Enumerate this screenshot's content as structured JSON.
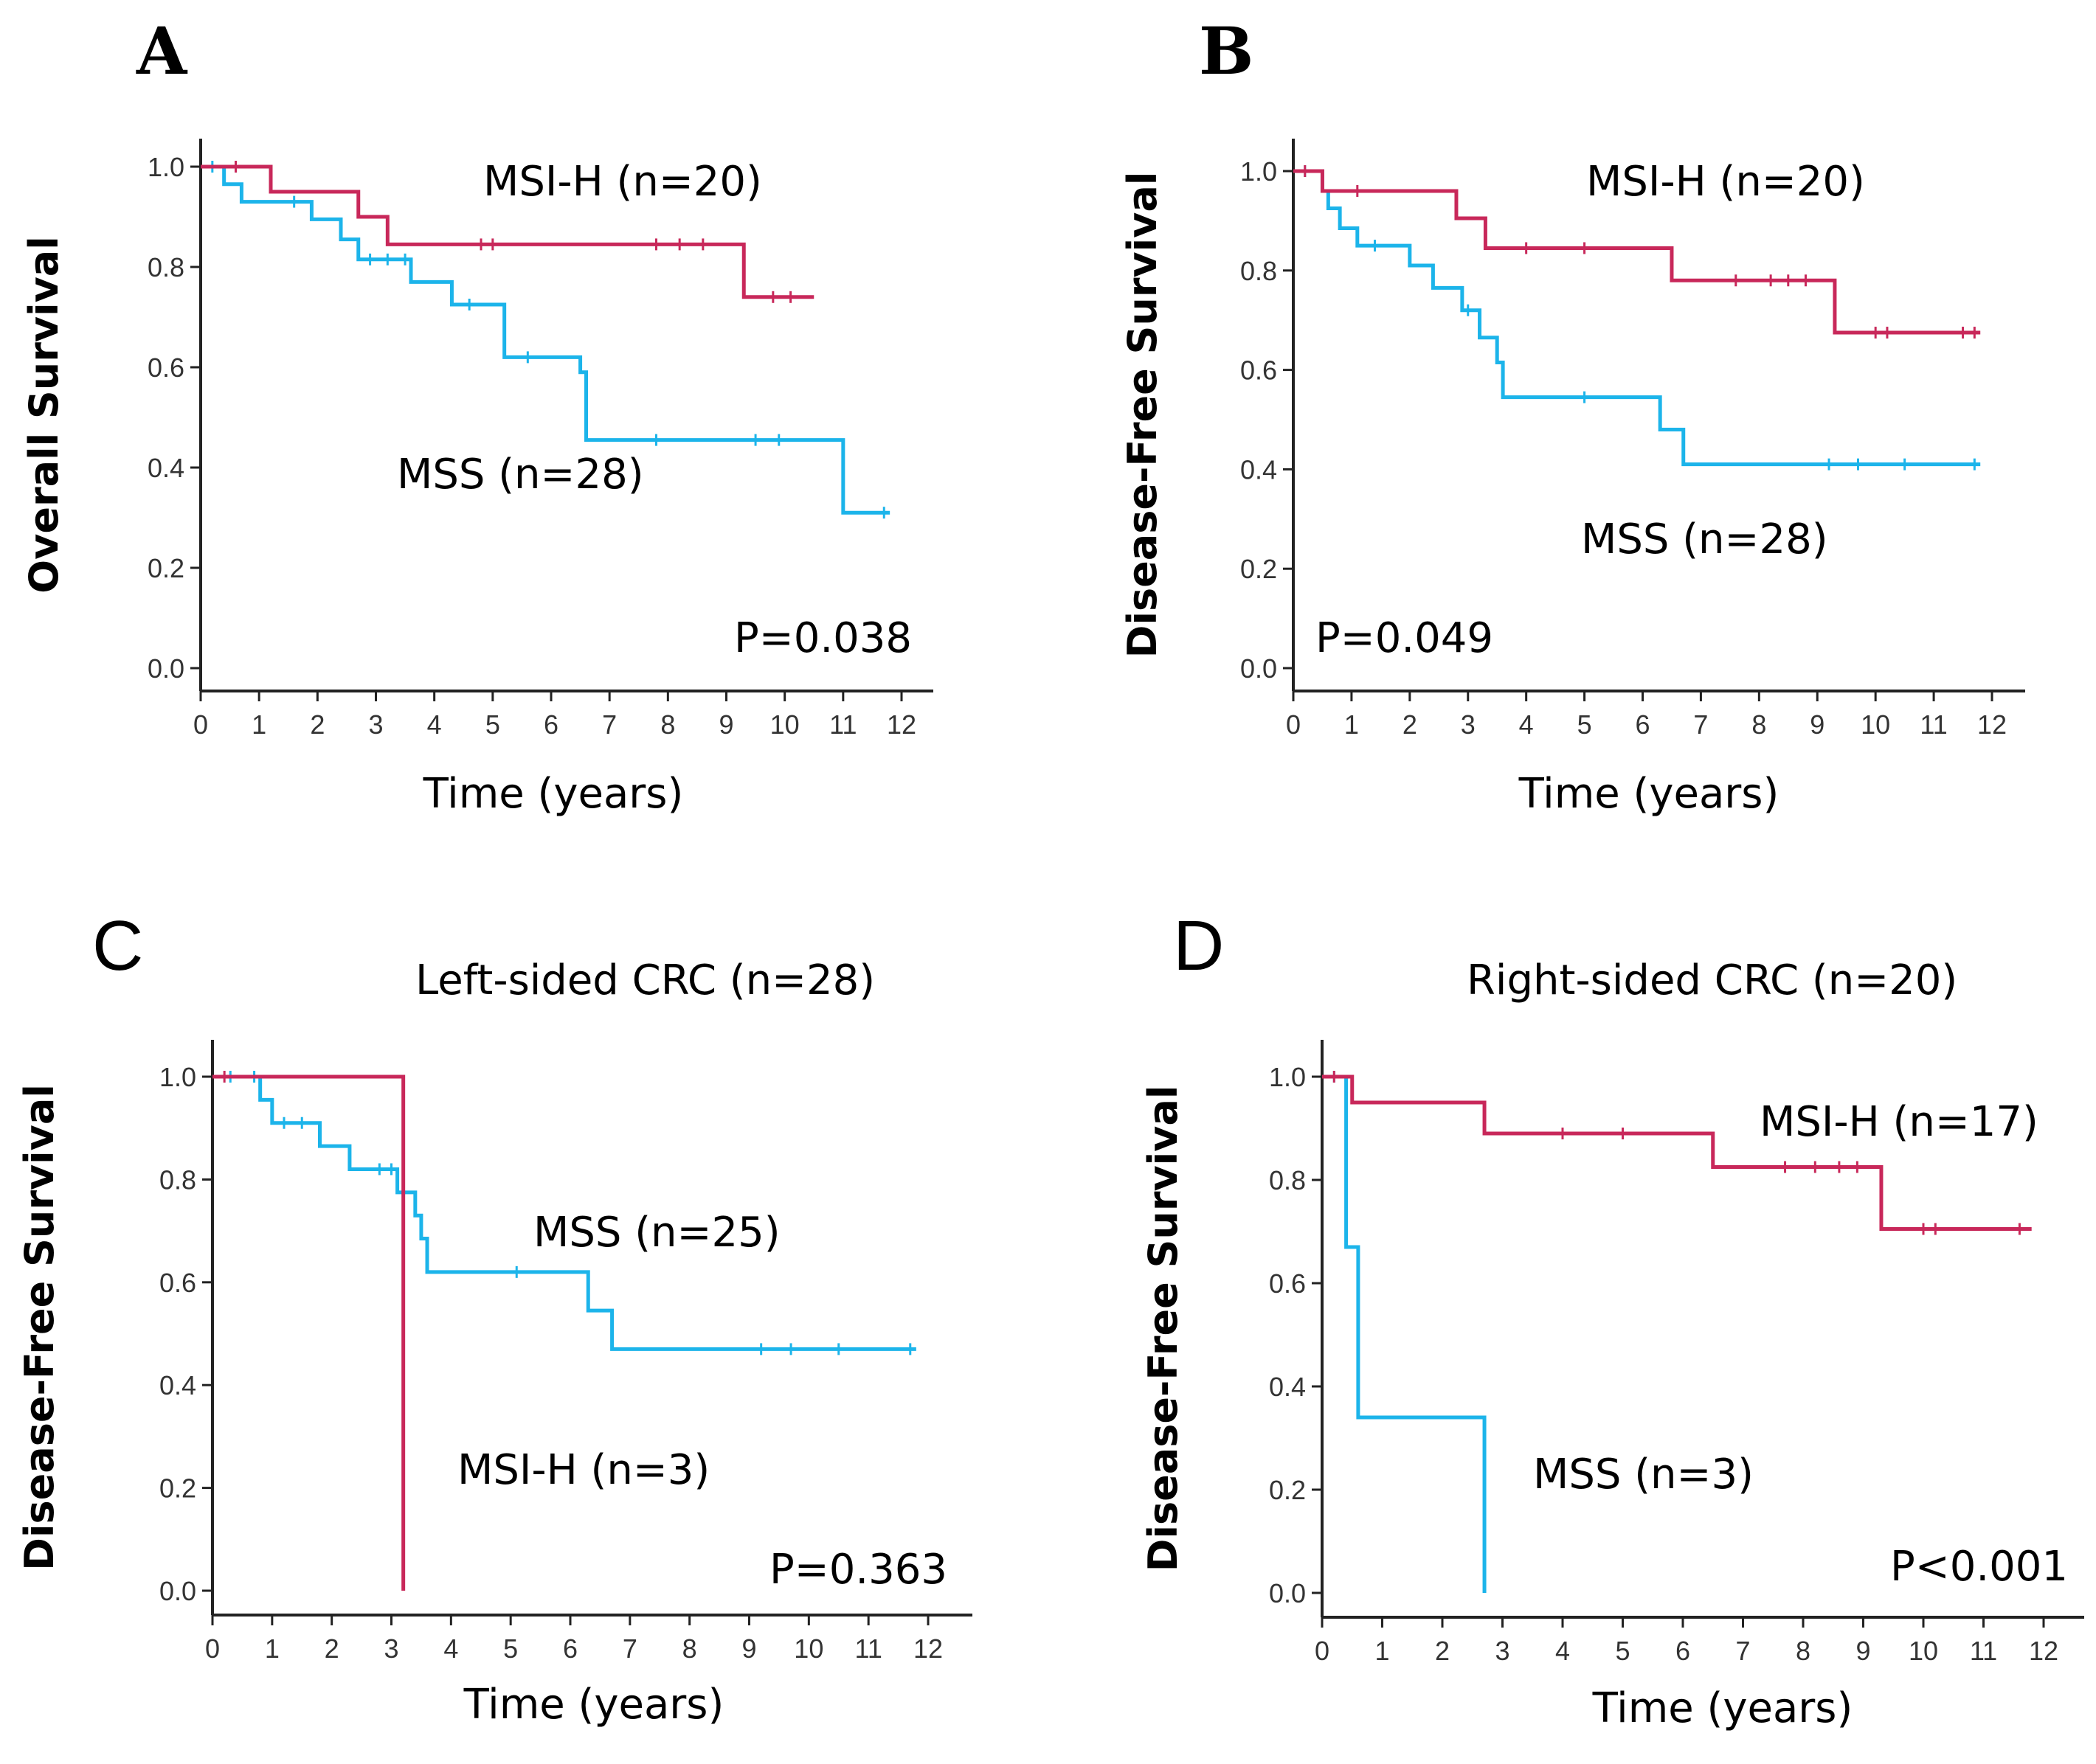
{
  "figure": {
    "colors": {
      "msi": "#c8285a",
      "mss": "#1cb4ea",
      "axis": "#222222"
    }
  },
  "chart_data": [
    {
      "panel": "A",
      "type": "line",
      "subtype": "kaplan-meier",
      "title": "",
      "xlabel": "Time (years)",
      "ylabel": "Overall Survival",
      "xlim": [
        0,
        12
      ],
      "ylim": [
        0,
        1
      ],
      "xticks": [
        "0",
        "1",
        "2",
        "3",
        "4",
        "5",
        "6",
        "7",
        "8",
        "9",
        "10",
        "11",
        "12"
      ],
      "yticks": [
        "0.0",
        "0.2",
        "0.4",
        "0.6",
        "0.8",
        "1.0"
      ],
      "p_value": "P=0.038",
      "series": [
        {
          "name": "MSI-H (n=20)",
          "color": "#c8285a",
          "steps": [
            [
              0,
              1.0
            ],
            [
              1.2,
              0.95
            ],
            [
              2.7,
              0.9
            ],
            [
              3.2,
              0.845
            ],
            [
              9.3,
              0.74
            ],
            [
              10.5,
              0.74
            ]
          ],
          "censor": [
            0.6,
            4.8,
            5.0,
            7.8,
            8.2,
            8.6,
            9.8,
            10.1
          ]
        },
        {
          "name": "MSS (n=28)",
          "color": "#1cb4ea",
          "steps": [
            [
              0,
              1.0
            ],
            [
              0.4,
              0.965
            ],
            [
              0.7,
              0.93
            ],
            [
              1.9,
              0.895
            ],
            [
              2.4,
              0.855
            ],
            [
              2.7,
              0.815
            ],
            [
              3.6,
              0.77
            ],
            [
              4.3,
              0.725
            ],
            [
              5.2,
              0.62
            ],
            [
              6.5,
              0.59
            ],
            [
              6.6,
              0.455
            ],
            [
              11.0,
              0.31
            ],
            [
              11.8,
              0.31
            ]
          ],
          "censor": [
            0.2,
            1.6,
            2.9,
            3.2,
            3.5,
            4.6,
            5.6,
            7.8,
            9.5,
            9.9,
            11.7
          ]
        }
      ]
    },
    {
      "panel": "B",
      "type": "line",
      "subtype": "kaplan-meier",
      "title": "",
      "xlabel": "Time (years)",
      "ylabel": "Disease-Free Survival",
      "xlim": [
        0,
        12
      ],
      "ylim": [
        0,
        1
      ],
      "xticks": [
        "0",
        "1",
        "2",
        "3",
        "4",
        "5",
        "6",
        "7",
        "8",
        "9",
        "10",
        "11",
        "12"
      ],
      "yticks": [
        "0.0",
        "0.2",
        "0.4",
        "0.6",
        "0.8",
        "1.0"
      ],
      "p_value": "P=0.049",
      "series": [
        {
          "name": "MSI-H (n=20)",
          "color": "#c8285a",
          "steps": [
            [
              0,
              1.0
            ],
            [
              0.5,
              0.96
            ],
            [
              2.8,
              0.905
            ],
            [
              3.3,
              0.845
            ],
            [
              6.5,
              0.78
            ],
            [
              9.3,
              0.675
            ],
            [
              11.8,
              0.675
            ]
          ],
          "censor": [
            0.2,
            1.1,
            4.0,
            5.0,
            7.6,
            8.2,
            8.5,
            8.8,
            10.0,
            10.2,
            11.5,
            11.7
          ]
        },
        {
          "name": "MSS (n=28)",
          "color": "#1cb4ea",
          "steps": [
            [
              0,
              1.0
            ],
            [
              0.5,
              0.96
            ],
            [
              0.6,
              0.925
            ],
            [
              0.8,
              0.885
            ],
            [
              1.1,
              0.85
            ],
            [
              2.0,
              0.81
            ],
            [
              2.4,
              0.765
            ],
            [
              2.9,
              0.72
            ],
            [
              3.2,
              0.665
            ],
            [
              3.5,
              0.615
            ],
            [
              3.6,
              0.545
            ],
            [
              6.3,
              0.48
            ],
            [
              6.7,
              0.41
            ],
            [
              11.8,
              0.41
            ]
          ],
          "censor": [
            0.2,
            1.4,
            3.0,
            5.0,
            9.2,
            9.7,
            10.5,
            11.7
          ]
        }
      ]
    },
    {
      "panel": "C",
      "type": "line",
      "subtype": "kaplan-meier",
      "title": "Left-sided CRC (n=28)",
      "xlabel": "Time (years)",
      "ylabel": "Disease-Free Survival",
      "xlim": [
        0,
        12
      ],
      "ylim": [
        0,
        1
      ],
      "xticks": [
        "0",
        "1",
        "2",
        "3",
        "4",
        "5",
        "6",
        "7",
        "8",
        "9",
        "10",
        "11",
        "12"
      ],
      "yticks": [
        "0.0",
        "0.2",
        "0.4",
        "0.6",
        "0.8",
        "1.0"
      ],
      "p_value": "P=0.363",
      "series": [
        {
          "name": "MSI-H (n=3)",
          "color": "#c8285a",
          "steps": [
            [
              0,
              1.0
            ],
            [
              3.2,
              0.0
            ]
          ],
          "censor": [
            0.2
          ]
        },
        {
          "name": "MSS (n=25)",
          "color": "#1cb4ea",
          "steps": [
            [
              0,
              1.0
            ],
            [
              0.8,
              0.955
            ],
            [
              1.0,
              0.91
            ],
            [
              1.8,
              0.865
            ],
            [
              2.3,
              0.82
            ],
            [
              3.1,
              0.775
            ],
            [
              3.4,
              0.73
            ],
            [
              3.5,
              0.685
            ],
            [
              3.6,
              0.62
            ],
            [
              6.3,
              0.545
            ],
            [
              6.7,
              0.47
            ],
            [
              11.8,
              0.47
            ]
          ],
          "censor": [
            0.3,
            0.7,
            1.2,
            1.5,
            2.8,
            3.0,
            5.1,
            9.2,
            9.7,
            10.5,
            11.7
          ]
        }
      ]
    },
    {
      "panel": "D",
      "type": "line",
      "subtype": "kaplan-meier",
      "title": "Right-sided CRC (n=20)",
      "xlabel": "Time (years)",
      "ylabel": "Disease-Free Survival",
      "xlim": [
        0,
        12
      ],
      "ylim": [
        0,
        1
      ],
      "xticks": [
        "0",
        "1",
        "2",
        "3",
        "4",
        "5",
        "6",
        "7",
        "8",
        "9",
        "10",
        "11",
        "12"
      ],
      "yticks": [
        "0.0",
        "0.2",
        "0.4",
        "0.6",
        "0.8",
        "1.0"
      ],
      "p_value": "P<0.001",
      "series": [
        {
          "name": "MSI-H (n=17)",
          "color": "#c8285a",
          "steps": [
            [
              0,
              1.0
            ],
            [
              0.5,
              0.95
            ],
            [
              2.7,
              0.89
            ],
            [
              6.5,
              0.825
            ],
            [
              9.3,
              0.705
            ],
            [
              11.8,
              0.705
            ]
          ],
          "censor": [
            0.2,
            4.0,
            5.0,
            7.7,
            8.2,
            8.6,
            8.9,
            10.0,
            10.2,
            11.6
          ]
        },
        {
          "name": "MSS (n=3)",
          "color": "#1cb4ea",
          "steps": [
            [
              0,
              1.0
            ],
            [
              0.4,
              0.67
            ],
            [
              0.6,
              0.34
            ],
            [
              2.7,
              0.0
            ]
          ],
          "censor": [
            0.2
          ]
        }
      ]
    }
  ],
  "panels": {
    "A": {
      "letter": "A",
      "series_labels": [
        "MSI-H (n=20)",
        "MSS (n=28)"
      ]
    },
    "B": {
      "letter": "B",
      "series_labels": [
        "MSI-H (n=20)",
        "MSS (n=28)"
      ]
    },
    "C": {
      "letter": "C",
      "series_labels": [
        "MSS (n=25)",
        "MSI-H (n=3)"
      ]
    },
    "D": {
      "letter": "D",
      "series_labels": [
        "MSI-H (n=17)",
        "MSS (n=3)"
      ]
    }
  }
}
